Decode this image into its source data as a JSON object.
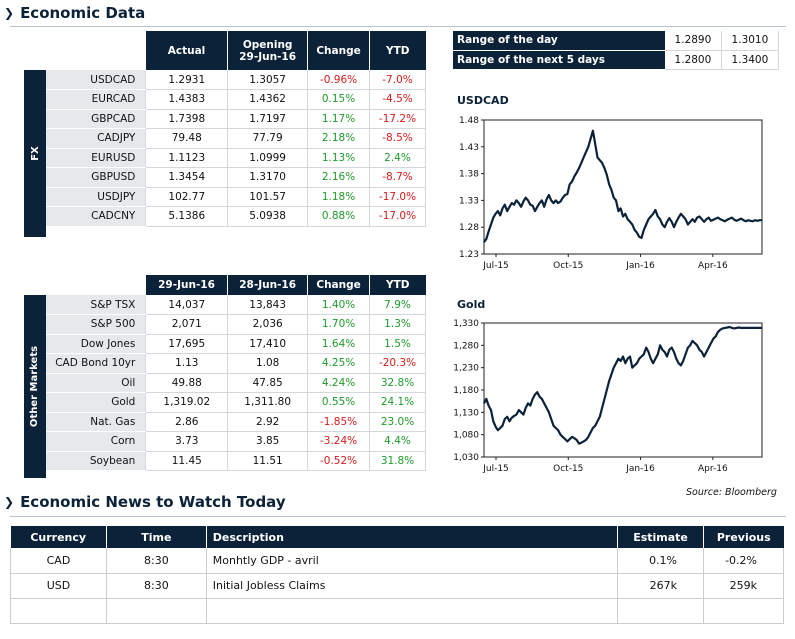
{
  "header": {
    "title": "Economic Data"
  },
  "fx": {
    "band_label": "FX",
    "columns": [
      "Actual",
      "Opening",
      "29-Jun-16",
      "Change",
      "YTD"
    ],
    "rows": [
      {
        "label": "USDCAD",
        "actual": "1.2931",
        "opening": "1.3057",
        "change": "-0.96%",
        "ytd": "-7.0%",
        "change_sign": "neg",
        "ytd_sign": "neg"
      },
      {
        "label": "EURCAD",
        "actual": "1.4383",
        "opening": "1.4362",
        "change": "0.15%",
        "ytd": "-4.5%",
        "change_sign": "pos",
        "ytd_sign": "neg"
      },
      {
        "label": "GBPCAD",
        "actual": "1.7398",
        "opening": "1.7197",
        "change": "1.17%",
        "ytd": "-17.2%",
        "change_sign": "pos",
        "ytd_sign": "neg"
      },
      {
        "label": "CADJPY",
        "actual": "79.48",
        "opening": "77.79",
        "change": "2.18%",
        "ytd": "-8.5%",
        "change_sign": "pos",
        "ytd_sign": "neg"
      },
      {
        "label": "EURUSD",
        "actual": "1.1123",
        "opening": "1.0999",
        "change": "1.13%",
        "ytd": "2.4%",
        "change_sign": "pos",
        "ytd_sign": "pos"
      },
      {
        "label": "GBPUSD",
        "actual": "1.3454",
        "opening": "1.3170",
        "change": "2.16%",
        "ytd": "-8.7%",
        "change_sign": "pos",
        "ytd_sign": "neg"
      },
      {
        "label": "USDJPY",
        "actual": "102.77",
        "opening": "101.57",
        "change": "1.18%",
        "ytd": "-17.0%",
        "change_sign": "pos",
        "ytd_sign": "neg"
      },
      {
        "label": "CADCNY",
        "actual": "5.1386",
        "opening": "5.0938",
        "change": "0.88%",
        "ytd": "-17.0%",
        "change_sign": "pos",
        "ytd_sign": "neg"
      }
    ]
  },
  "markets": {
    "band_label": "Other Markets",
    "columns": [
      "29-Jun-16",
      "28-Jun-16",
      "Change",
      "YTD"
    ],
    "rows": [
      {
        "label": "S&P TSX",
        "actual": "14,037",
        "prev": "13,843",
        "change": "1.40%",
        "ytd": "7.9%",
        "change_sign": "pos",
        "ytd_sign": "pos"
      },
      {
        "label": "S&P 500",
        "actual": "2,071",
        "prev": "2,036",
        "change": "1.70%",
        "ytd": "1.3%",
        "change_sign": "pos",
        "ytd_sign": "pos"
      },
      {
        "label": "Dow Jones",
        "actual": "17,695",
        "prev": "17,410",
        "change": "1.64%",
        "ytd": "1.5%",
        "change_sign": "pos",
        "ytd_sign": "pos"
      },
      {
        "label": "CAD Bond 10yr",
        "actual": "1.13",
        "prev": "1.08",
        "change": "4.25%",
        "ytd": "-20.3%",
        "change_sign": "pos",
        "ytd_sign": "neg"
      },
      {
        "label": "Oil",
        "actual": "49.88",
        "prev": "47.85",
        "change": "4.24%",
        "ytd": "32.8%",
        "change_sign": "pos",
        "ytd_sign": "pos"
      },
      {
        "label": "Gold",
        "actual": "1,319.02",
        "prev": "1,311.80",
        "change": "0.55%",
        "ytd": "24.1%",
        "change_sign": "pos",
        "ytd_sign": "pos"
      },
      {
        "label": "Nat. Gas",
        "actual": "2.86",
        "prev": "2.92",
        "change": "-1.85%",
        "ytd": "23.0%",
        "change_sign": "neg",
        "ytd_sign": "pos"
      },
      {
        "label": "Corn",
        "actual": "3.73",
        "prev": "3.85",
        "change": "-3.24%",
        "ytd": "4.4%",
        "change_sign": "neg",
        "ytd_sign": "pos"
      },
      {
        "label": "Soybean",
        "actual": "11.45",
        "prev": "11.51",
        "change": "-0.52%",
        "ytd": "31.8%",
        "change_sign": "neg",
        "ytd_sign": "pos"
      }
    ]
  },
  "range": {
    "rows": [
      {
        "label": "Range of the day",
        "low": "1.2890",
        "high": "1.3010"
      },
      {
        "label": "Range of the next 5 days",
        "low": "1.2800",
        "high": "1.3400"
      }
    ]
  },
  "chart_data": [
    {
      "type": "line",
      "title": "USDCAD",
      "xlabel": "",
      "ylabel": "",
      "x_ticks": [
        "Jul-15",
        "Oct-15",
        "Jan-16",
        "Apr-16"
      ],
      "y_ticks": [
        "1.48",
        "1.43",
        "1.38",
        "1.33",
        "1.28",
        "1.23"
      ],
      "ylim": [
        1.23,
        1.48
      ],
      "grid": false,
      "series": [
        {
          "x": [
            0,
            3,
            6,
            9,
            12,
            15,
            18,
            21,
            24,
            27,
            30,
            33,
            36,
            39,
            42,
            45,
            48,
            51,
            54,
            57,
            60,
            63,
            66,
            69,
            72,
            75,
            78,
            81,
            84,
            87,
            90,
            93,
            96,
            99,
            102,
            105,
            108,
            111,
            114,
            117,
            120,
            123,
            126,
            129,
            132,
            135,
            138,
            141,
            144,
            147,
            150,
            153,
            156,
            159,
            162,
            165,
            168,
            171,
            174,
            177,
            180,
            183,
            186,
            189,
            192,
            195,
            198,
            201,
            204,
            207,
            210,
            213,
            216,
            219,
            222,
            225,
            228,
            231,
            234,
            237,
            240,
            243,
            246,
            249,
            252,
            255,
            258,
            261,
            264,
            267,
            270,
            273,
            276,
            279,
            282,
            285,
            288,
            291,
            294,
            297,
            300,
            303,
            306,
            309,
            312,
            315,
            318,
            321,
            324,
            327,
            330,
            333,
            336,
            339,
            342,
            345,
            348,
            351,
            354,
            357,
            360
          ],
          "values": [
            1.252,
            1.258,
            1.272,
            1.285,
            1.298,
            1.305,
            1.31,
            1.302,
            1.315,
            1.322,
            1.31,
            1.318,
            1.325,
            1.322,
            1.33,
            1.325,
            1.318,
            1.328,
            1.335,
            1.33,
            1.322,
            1.32,
            1.31,
            1.318,
            1.325,
            1.33,
            1.318,
            1.332,
            1.34,
            1.33,
            1.325,
            1.33,
            1.325,
            1.328,
            1.335,
            1.34,
            1.342,
            1.36,
            1.365,
            1.375,
            1.382,
            1.39,
            1.4,
            1.41,
            1.42,
            1.43,
            1.445,
            1.46,
            1.435,
            1.41,
            1.405,
            1.4,
            1.39,
            1.378,
            1.36,
            1.35,
            1.335,
            1.33,
            1.31,
            1.315,
            1.3,
            1.305,
            1.295,
            1.29,
            1.285,
            1.275,
            1.27,
            1.262,
            1.26,
            1.275,
            1.285,
            1.295,
            1.3,
            1.305,
            1.312,
            1.3,
            1.295,
            1.285,
            1.28,
            1.29,
            1.297,
            1.29,
            1.28,
            1.29,
            1.298,
            1.305,
            1.3,
            1.295,
            1.285,
            1.29,
            1.295,
            1.29,
            1.298,
            1.3,
            1.295,
            1.29,
            1.295,
            1.298,
            1.292,
            1.294,
            1.296,
            1.298,
            1.295,
            1.293,
            1.291,
            1.294,
            1.296,
            1.298,
            1.294,
            1.292,
            1.294,
            1.296,
            1.293,
            1.291,
            1.293,
            1.292,
            1.291,
            1.293,
            1.292,
            1.293,
            1.293
          ]
        }
      ]
    },
    {
      "type": "line",
      "title": "Gold",
      "xlabel": "",
      "ylabel": "",
      "x_ticks": [
        "Jul-15",
        "Oct-15",
        "Jan-16",
        "Apr-16"
      ],
      "y_ticks": [
        "1,330",
        "1,280",
        "1,230",
        "1,180",
        "1,130",
        "1,080",
        "1,030"
      ],
      "ylim": [
        1030,
        1330
      ],
      "grid": false,
      "series": [
        {
          "x": [
            0,
            3,
            6,
            9,
            12,
            15,
            18,
            21,
            24,
            27,
            30,
            33,
            36,
            39,
            42,
            45,
            48,
            51,
            54,
            57,
            60,
            63,
            66,
            69,
            72,
            75,
            78,
            81,
            84,
            87,
            90,
            93,
            96,
            99,
            102,
            105,
            108,
            111,
            114,
            117,
            120,
            123,
            126,
            129,
            132,
            135,
            138,
            141,
            144,
            147,
            150,
            153,
            156,
            159,
            162,
            165,
            168,
            171,
            174,
            177,
            180,
            183,
            186,
            189,
            192,
            195,
            198,
            201,
            204,
            207,
            210,
            213,
            216,
            219,
            222,
            225,
            228,
            231,
            234,
            237,
            240,
            243,
            246,
            249,
            252,
            255,
            258,
            261,
            264,
            267,
            270,
            273,
            276,
            279,
            282,
            285,
            288,
            291,
            294,
            297,
            300,
            303,
            306,
            309,
            312,
            315,
            318,
            321,
            324,
            327,
            330,
            333,
            336,
            339,
            342,
            345,
            348,
            351,
            354,
            357,
            360
          ],
          "values": [
            1150,
            1160,
            1145,
            1135,
            1110,
            1098,
            1090,
            1095,
            1100,
            1115,
            1120,
            1110,
            1118,
            1122,
            1125,
            1135,
            1130,
            1125,
            1140,
            1150,
            1145,
            1160,
            1170,
            1175,
            1165,
            1160,
            1150,
            1140,
            1130,
            1115,
            1100,
            1095,
            1090,
            1080,
            1075,
            1070,
            1065,
            1070,
            1075,
            1072,
            1068,
            1060,
            1062,
            1065,
            1068,
            1075,
            1085,
            1095,
            1100,
            1110,
            1120,
            1140,
            1160,
            1180,
            1200,
            1215,
            1230,
            1240,
            1250,
            1245,
            1255,
            1240,
            1250,
            1255,
            1230,
            1235,
            1240,
            1250,
            1255,
            1260,
            1275,
            1265,
            1250,
            1240,
            1250,
            1260,
            1280,
            1270,
            1265,
            1255,
            1270,
            1275,
            1265,
            1250,
            1240,
            1235,
            1245,
            1260,
            1275,
            1280,
            1290,
            1285,
            1280,
            1270,
            1265,
            1255,
            1265,
            1275,
            1285,
            1295,
            1300,
            1310,
            1315,
            1318,
            1319,
            1320,
            1321,
            1319,
            1318,
            1319,
            1320,
            1319,
            1319,
            1319,
            1319,
            1319,
            1319,
            1319,
            1319,
            1319,
            1319
          ]
        }
      ]
    }
  ],
  "source": "Source: Bloomberg",
  "news": {
    "title": "Economic News to Watch Today",
    "columns": [
      "Currency",
      "Time",
      "Description",
      "Estimate",
      "Previous"
    ],
    "rows": [
      {
        "currency": "CAD",
        "time": "8:30",
        "description": "Monhtly GDP - avril",
        "estimate": "0.1%",
        "previous": "-0.2%"
      },
      {
        "currency": "USD",
        "time": "8:30",
        "description": "Initial Jobless Claims",
        "estimate": "267k",
        "previous": "259k"
      },
      {
        "currency": "",
        "time": "",
        "description": "",
        "estimate": "",
        "previous": ""
      }
    ]
  },
  "colors": {
    "navy": "#0b2238",
    "positive": "#1e9b2a",
    "negative": "#d61a1a"
  }
}
